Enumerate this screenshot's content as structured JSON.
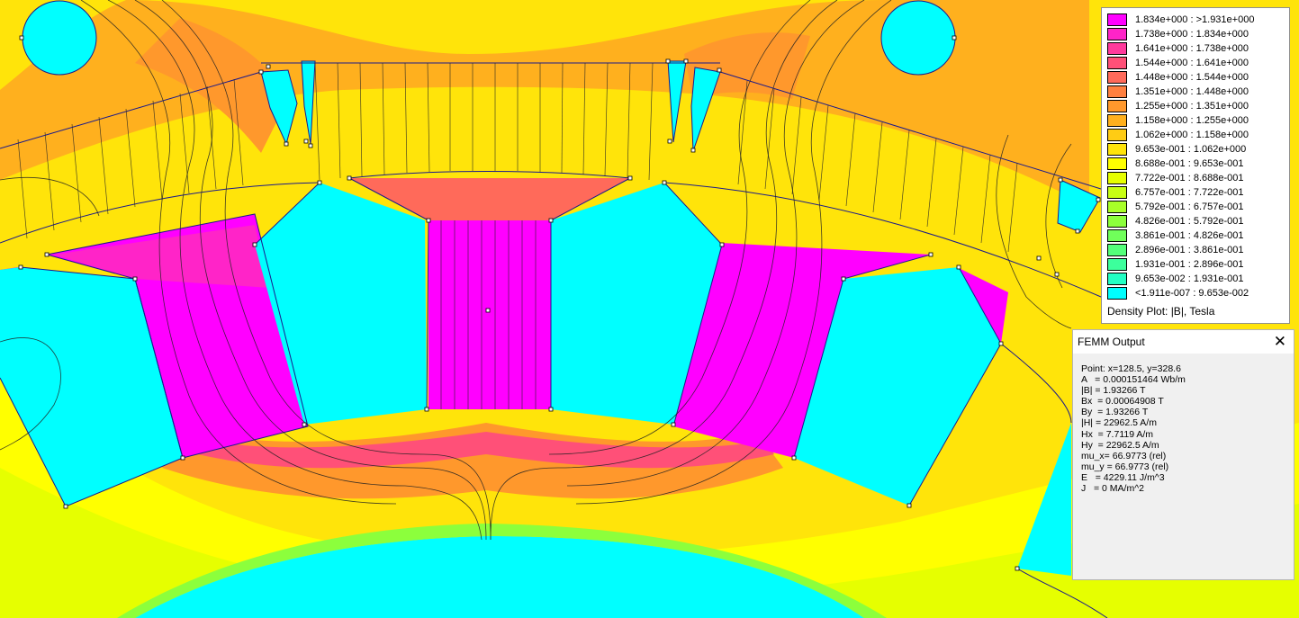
{
  "legend": {
    "entries": [
      {
        "color": "#ff00ff",
        "label": "1.834e+000 : >1.931e+000"
      },
      {
        "color": "#ff24c8",
        "label": "1.738e+000 : 1.834e+000"
      },
      {
        "color": "#ff3a9c",
        "label": "1.641e+000 : 1.738e+000"
      },
      {
        "color": "#ff5078",
        "label": "1.544e+000 : 1.641e+000"
      },
      {
        "color": "#ff6a5a",
        "label": "1.448e+000 : 1.544e+000"
      },
      {
        "color": "#ff8040",
        "label": "1.351e+000 : 1.448e+000"
      },
      {
        "color": "#ff982c",
        "label": "1.255e+000 : 1.351e+000"
      },
      {
        "color": "#ffb01e",
        "label": "1.158e+000 : 1.255e+000"
      },
      {
        "color": "#ffcc14",
        "label": "1.062e+000 : 1.158e+000"
      },
      {
        "color": "#ffe40a",
        "label": "9.653e-001 : 1.062e+000"
      },
      {
        "color": "#ffff00",
        "label": "8.688e-001 : 9.653e-001"
      },
      {
        "color": "#e6ff00",
        "label": "7.722e-001 : 8.688e-001"
      },
      {
        "color": "#c8ff14",
        "label": "6.757e-001 : 7.722e-001"
      },
      {
        "color": "#a8ff28",
        "label": "5.792e-001 : 6.757e-001"
      },
      {
        "color": "#8cff3c",
        "label": "4.826e-001 : 5.792e-001"
      },
      {
        "color": "#70ff5a",
        "label": "3.861e-001 : 4.826e-001"
      },
      {
        "color": "#54ff7a",
        "label": "2.896e-001 : 3.861e-001"
      },
      {
        "color": "#3cff9c",
        "label": "1.931e-001 : 2.896e-001"
      },
      {
        "color": "#22ffc4",
        "label": "9.653e-002 : 1.931e-001"
      },
      {
        "color": "#00ffff",
        "label": "<1.911e-007 : 9.653e-002"
      }
    ],
    "title": "Density Plot: |B|, Tesla"
  },
  "output_window": {
    "title": "FEMM Output",
    "lines": [
      "Point: x=128.5, y=328.6",
      "A   = 0.000151464 Wb/m",
      "|B| = 1.93266 T",
      "Bx  = 0.00064908 T",
      "By  = 1.93266 T",
      "|H| = 22962.5 A/m",
      "Hx  = 7.7119 A/m",
      "Hy  = 22962.5 A/m",
      "mu_x= 66.9773 (rel)",
      "mu_y = 66.9773 (rel)",
      "E   = 4229.11 J/m^3",
      "J   = 0 MA/m^2"
    ]
  }
}
